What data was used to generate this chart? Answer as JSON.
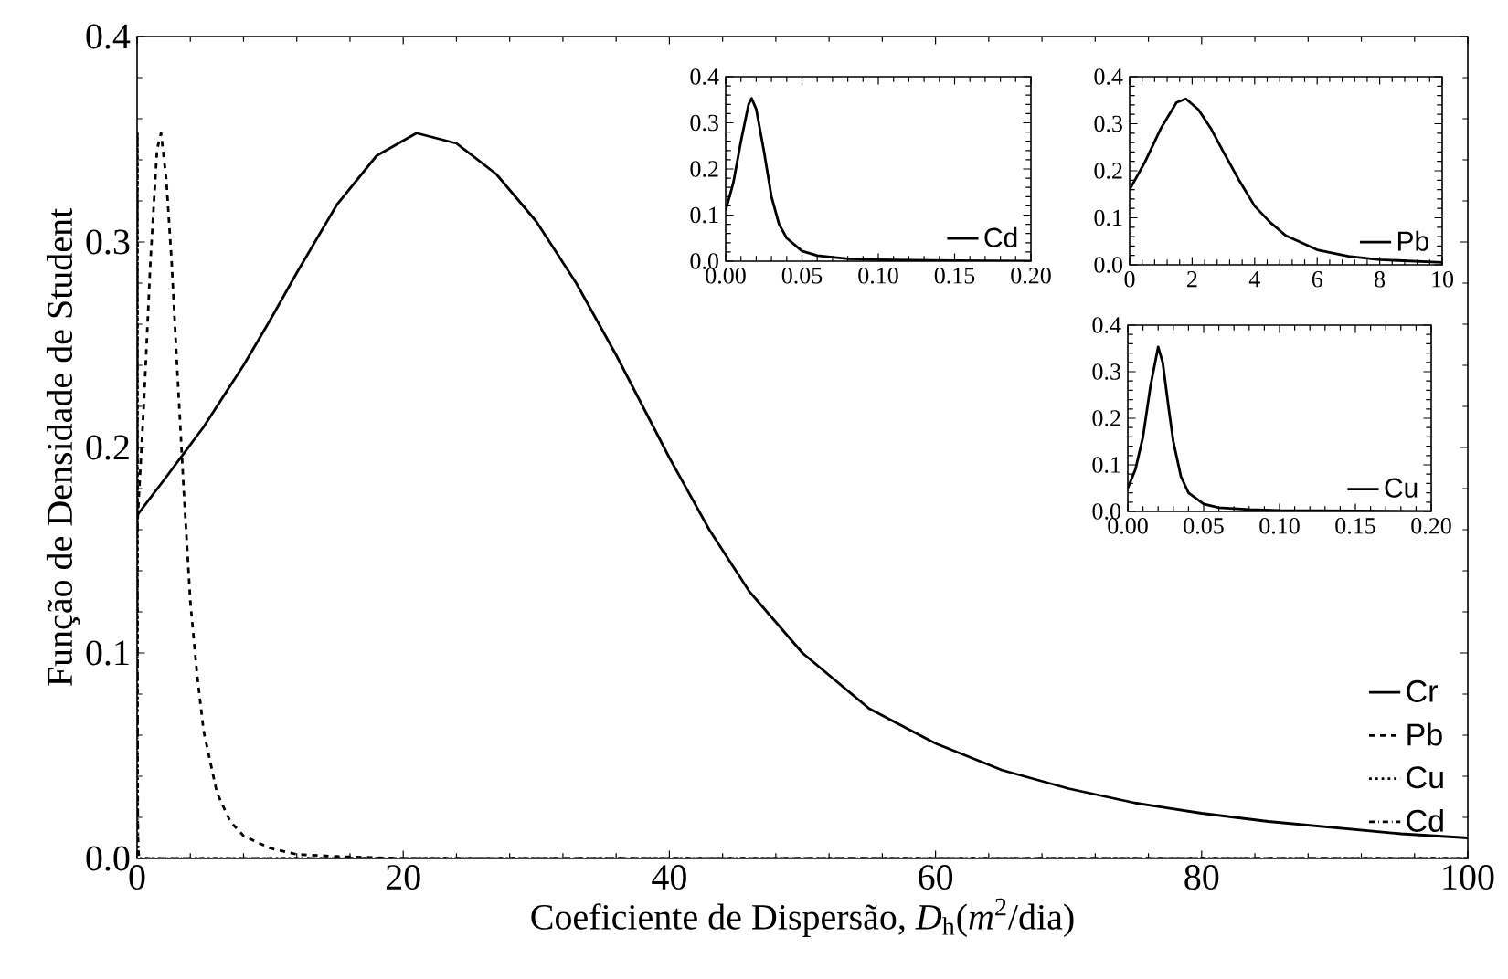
{
  "chart_data": [
    {
      "type": "line",
      "xlabel": "Coeficiente de Dispersão, *D*$_{h}$(*m*$^{2}$/dia)",
      "ylabel": "Função de Densidade de Student",
      "xlim": [
        0,
        100
      ],
      "ylim": [
        0,
        0.4
      ],
      "xticks": [
        0,
        20,
        40,
        60,
        80,
        100
      ],
      "yticks": [
        {
          "value": 0,
          "label": "0.0"
        },
        {
          "value": 0.1,
          "label": "0.1"
        },
        {
          "value": 0.2,
          "label": "0.2"
        },
        {
          "value": 0.3,
          "label": "0.3"
        },
        {
          "value": 0.4,
          "label": "0.4"
        }
      ],
      "legend": "bottom right",
      "grid": false,
      "series": [
        {
          "name": "Cr",
          "color": "#000000",
          "line_style": "solid",
          "x": [
            0,
            2,
            5,
            8,
            10,
            12,
            15,
            18,
            21,
            24,
            27,
            30,
            33,
            36,
            40,
            43,
            46,
            50,
            55,
            60,
            65,
            70,
            75,
            80,
            85,
            90,
            95,
            100
          ],
          "values": [
            0.167,
            0.184,
            0.21,
            0.24,
            0.262,
            0.285,
            0.318,
            0.342,
            0.353,
            0.348,
            0.333,
            0.31,
            0.28,
            0.245,
            0.195,
            0.16,
            0.13,
            0.1,
            0.073,
            0.056,
            0.043,
            0.034,
            0.027,
            0.022,
            0.018,
            0.015,
            0.012,
            0.01
          ]
        },
        {
          "name": "Pb",
          "color": "#000000",
          "line_style": "dashed",
          "x": [
            0,
            0.5,
            1,
            1.5,
            1.8,
            2.2,
            2.6,
            3,
            3.5,
            4,
            4.5,
            5,
            6,
            7,
            8,
            10,
            12,
            15,
            20,
            100
          ],
          "values": [
            0.16,
            0.22,
            0.29,
            0.345,
            0.353,
            0.33,
            0.29,
            0.24,
            0.18,
            0.125,
            0.09,
            0.062,
            0.032,
            0.018,
            0.011,
            0.005,
            0.002,
            0.001,
            0,
            0
          ]
        },
        {
          "name": "Cu",
          "color": "#000000",
          "line_style": "dotted",
          "x": [
            0,
            0.005,
            0.01,
            0.015,
            0.02,
            0.023,
            0.027,
            0.03,
            0.035,
            0.04,
            0.05,
            0.06,
            0.08,
            0.1,
            0.15,
            0.2,
            100
          ],
          "values": [
            0.05,
            0.09,
            0.16,
            0.27,
            0.353,
            0.32,
            0.22,
            0.15,
            0.075,
            0.04,
            0.016,
            0.008,
            0.004,
            0.002,
            0.001,
            0,
            0
          ]
        },
        {
          "name": "Cd",
          "color": "#000000",
          "line_style": "dashdotted",
          "x": [
            0,
            0.005,
            0.01,
            0.015,
            0.017,
            0.02,
            0.025,
            0.03,
            0.035,
            0.04,
            0.05,
            0.06,
            0.08,
            0.1,
            0.15,
            0.2,
            100
          ],
          "values": [
            0.11,
            0.17,
            0.26,
            0.34,
            0.353,
            0.33,
            0.24,
            0.14,
            0.08,
            0.05,
            0.022,
            0.012,
            0.005,
            0.003,
            0.001,
            0,
            0
          ]
        }
      ]
    },
    {
      "type": "line",
      "xlim": [
        0,
        0.2
      ],
      "ylim": [
        0,
        0.4
      ],
      "xticks": [
        {
          "value": 0,
          "label": "0.00"
        },
        {
          "value": 0.05,
          "label": "0.05"
        },
        {
          "value": 0.1,
          "label": "0.10"
        },
        {
          "value": 0.15,
          "label": "0.15"
        },
        {
          "value": 0.2,
          "label": "0.20"
        }
      ],
      "yticks": [
        {
          "value": 0,
          "label": "0.0"
        },
        {
          "value": 0.1,
          "label": "0.1"
        },
        {
          "value": 0.2,
          "label": "0.2"
        },
        {
          "value": 0.3,
          "label": "0.3"
        },
        {
          "value": 0.4,
          "label": "0.4"
        }
      ],
      "legend": "bottom right",
      "grid": false,
      "series": [
        {
          "name": "Cd",
          "color": "#000000",
          "line_style": "solid",
          "x": [
            0,
            0.005,
            0.01,
            0.015,
            0.017,
            0.02,
            0.025,
            0.03,
            0.035,
            0.04,
            0.05,
            0.06,
            0.08,
            0.1,
            0.15,
            0.2
          ],
          "values": [
            0.11,
            0.17,
            0.26,
            0.34,
            0.353,
            0.33,
            0.24,
            0.14,
            0.08,
            0.05,
            0.022,
            0.012,
            0.005,
            0.003,
            0.001,
            0
          ]
        }
      ]
    },
    {
      "type": "line",
      "xlim": [
        0,
        10
      ],
      "ylim": [
        0,
        0.4
      ],
      "xticks": [
        0,
        2,
        4,
        6,
        8,
        10
      ],
      "yticks": [
        {
          "value": 0,
          "label": "0.0"
        },
        {
          "value": 0.1,
          "label": "0.1"
        },
        {
          "value": 0.2,
          "label": "0.2"
        },
        {
          "value": 0.3,
          "label": "0.3"
        },
        {
          "value": 0.4,
          "label": "0.4"
        }
      ],
      "legend": "bottom right",
      "grid": false,
      "series": [
        {
          "name": "Pb",
          "color": "#000000",
          "line_style": "solid",
          "x": [
            0,
            0.5,
            1,
            1.5,
            1.8,
            2.2,
            2.6,
            3,
            3.5,
            4,
            4.5,
            5,
            6,
            7,
            8,
            10
          ],
          "values": [
            0.16,
            0.22,
            0.29,
            0.345,
            0.353,
            0.33,
            0.29,
            0.24,
            0.18,
            0.125,
            0.09,
            0.062,
            0.032,
            0.018,
            0.011,
            0.005
          ]
        }
      ]
    },
    {
      "type": "line",
      "xlim": [
        0,
        0.2
      ],
      "ylim": [
        0,
        0.4
      ],
      "xticks": [
        {
          "value": 0,
          "label": "0.00"
        },
        {
          "value": 0.05,
          "label": "0.05"
        },
        {
          "value": 0.1,
          "label": "0.10"
        },
        {
          "value": 0.15,
          "label": "0.15"
        },
        {
          "value": 0.2,
          "label": "0.20"
        }
      ],
      "yticks": [
        {
          "value": 0,
          "label": "0.0"
        },
        {
          "value": 0.1,
          "label": "0.1"
        },
        {
          "value": 0.2,
          "label": "0.2"
        },
        {
          "value": 0.3,
          "label": "0.3"
        },
        {
          "value": 0.4,
          "label": "0.4"
        }
      ],
      "legend": "bottom right",
      "grid": false,
      "series": [
        {
          "name": "Cu",
          "color": "#000000",
          "line_style": "solid",
          "x": [
            0,
            0.005,
            0.01,
            0.015,
            0.02,
            0.023,
            0.027,
            0.03,
            0.035,
            0.04,
            0.05,
            0.06,
            0.08,
            0.1,
            0.15,
            0.2
          ],
          "values": [
            0.05,
            0.09,
            0.16,
            0.27,
            0.353,
            0.32,
            0.22,
            0.15,
            0.075,
            0.04,
            0.016,
            0.008,
            0.004,
            0.002,
            0.001,
            0
          ]
        }
      ]
    }
  ]
}
